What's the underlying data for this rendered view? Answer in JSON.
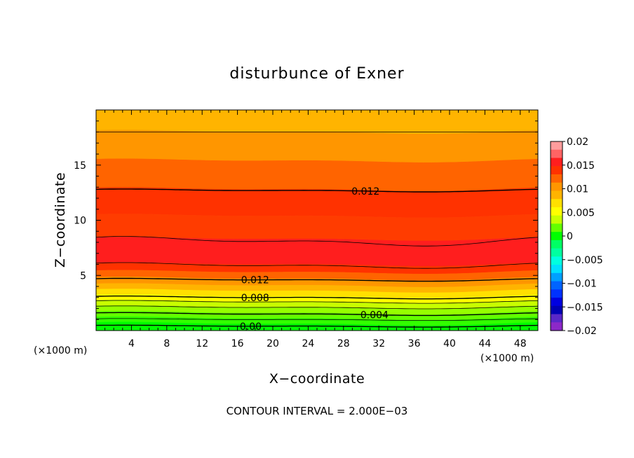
{
  "chart_data": {
    "type": "contour",
    "title": "disturbunce of Exner",
    "xlabel": "X−coordinate",
    "ylabel": "Z−coordinate",
    "x_unit_left": "(×1000 m)",
    "x_unit_right": "(×1000 m)",
    "xlim": [
      0,
      50
    ],
    "ylim": [
      0,
      20
    ],
    "x_ticks": [
      4,
      8,
      12,
      16,
      20,
      24,
      28,
      32,
      36,
      40,
      44,
      48
    ],
    "x_tick_labels": [
      "4",
      "8",
      "12",
      "16",
      "20",
      "24",
      "28",
      "32",
      "36",
      "40",
      "44",
      "48"
    ],
    "y_ticks": [
      5,
      10,
      15
    ],
    "y_tick_labels": [
      "5",
      "10",
      "15"
    ],
    "contour_interval_text": "CONTOUR INTERVAL = 2.000E−03",
    "contour_interval": 0.002,
    "colorbar": {
      "ticks": [
        0.02,
        0.015,
        0.01,
        0.005,
        0,
        -0.005,
        -0.01,
        -0.015,
        -0.02
      ],
      "labels": [
        "0.02",
        "0.015",
        "0.01",
        "0.005",
        "0",
        "−0.005",
        "−0.01",
        "−0.015",
        "−0.02"
      ],
      "colors_top_to_bottom": [
        "#ff9d9d",
        "#ff6464",
        "#ff1e1e",
        "#ff3200",
        "#ff6400",
        "#ff9600",
        "#ffb400",
        "#ffe000",
        "#ffff00",
        "#c8ff00",
        "#64ff00",
        "#00ff00",
        "#00ff64",
        "#00ffa0",
        "#00ffe0",
        "#00e0ff",
        "#00a0ff",
        "#0064ff",
        "#0032ff",
        "#0000e0",
        "#0000b4",
        "#5a28c8",
        "#8c28c8"
      ]
    },
    "bands": [
      {
        "z_bottom": 18,
        "z_top": 20,
        "color": "#ffb400"
      },
      {
        "z_bottom": 15.4,
        "z_top": 18,
        "color": "#ff9600"
      },
      {
        "z_bottom": 12.8,
        "z_top": 15.4,
        "color": "#ff6400"
      },
      {
        "z_bottom": 10.4,
        "z_top": 12.8,
        "color": "#ff3200"
      },
      {
        "z_bottom": 8.3,
        "z_top": 10.4,
        "color": "#ff3c00"
      },
      {
        "z_bottom": 6.0,
        "z_top": 8.3,
        "color": "#ff1e1e"
      },
      {
        "z_bottom": 5.3,
        "z_top": 6.0,
        "color": "#ff3200"
      },
      {
        "z_bottom": 4.7,
        "z_top": 5.3,
        "color": "#ff6400"
      },
      {
        "z_bottom": 4.1,
        "z_top": 4.7,
        "color": "#ff9600"
      },
      {
        "z_bottom": 3.6,
        "z_top": 4.1,
        "color": "#ffb400"
      },
      {
        "z_bottom": 3.1,
        "z_top": 3.6,
        "color": "#ffe000"
      },
      {
        "z_bottom": 2.6,
        "z_top": 3.1,
        "color": "#ffff00"
      },
      {
        "z_bottom": 2.1,
        "z_top": 2.6,
        "color": "#c8ff00"
      },
      {
        "z_bottom": 1.6,
        "z_top": 2.1,
        "color": "#96ff00"
      },
      {
        "z_bottom": 1.1,
        "z_top": 1.6,
        "color": "#64ff00"
      },
      {
        "z_bottom": 0.6,
        "z_top": 1.1,
        "color": "#32ff00"
      },
      {
        "z_bottom": 0,
        "z_top": 0.6,
        "color": "#00ff00"
      }
    ],
    "contours": [
      {
        "z": 18.0,
        "amp": 0.0,
        "label": ""
      },
      {
        "z": 12.7,
        "amp": 0.15,
        "label": "0.012",
        "label_x": 30.5
      },
      {
        "z": 8.1,
        "amp": 0.5,
        "label": ""
      },
      {
        "z": 5.9,
        "amp": 0.3,
        "label": ""
      },
      {
        "z": 4.6,
        "amp": 0.15,
        "label": "0.012",
        "label_x": 18
      },
      {
        "z": 3.0,
        "amp": 0.15,
        "label": "0.008",
        "label_x": 18
      },
      {
        "z": 2.6,
        "amp": 0.15,
        "label": ""
      },
      {
        "z": 2.1,
        "amp": 0.15,
        "label": ""
      },
      {
        "z": 1.5,
        "amp": 0.15,
        "label": "0.004",
        "label_x": 31.5
      },
      {
        "z": 1.0,
        "amp": 0.1,
        "label": ""
      },
      {
        "z": 0.4,
        "amp": 0.1,
        "label": "0.00",
        "label_x": 17.5
      }
    ]
  }
}
